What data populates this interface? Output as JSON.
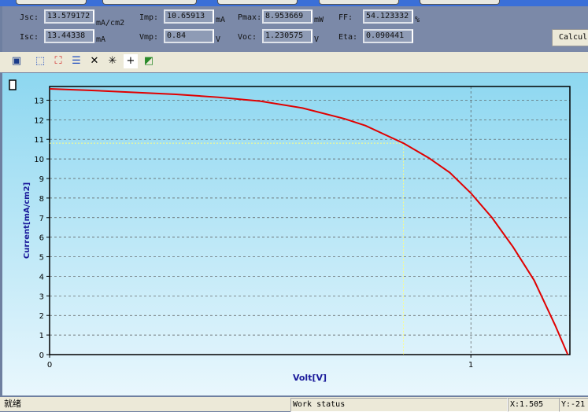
{
  "results": {
    "jsc": {
      "label": "Jsc:",
      "value": "13.579172",
      "unit": "mA/cm2"
    },
    "isc": {
      "label": "Isc:",
      "value": "13.44338",
      "unit": "mA"
    },
    "imp": {
      "label": "Imp:",
      "value": "10.65913",
      "unit": "mA"
    },
    "vmp": {
      "label": "Vmp:",
      "value": "0.84",
      "unit": "V"
    },
    "pmax": {
      "label": "Pmax:",
      "value": "8.953669",
      "unit": "mW"
    },
    "voc": {
      "label": "Voc:",
      "value": "1.230575",
      "unit": "V"
    },
    "ff": {
      "label": "FF:",
      "value": "54.123332",
      "unit": "%"
    },
    "eta": {
      "label": "Eta:",
      "value": "0.090441",
      "unit": ""
    }
  },
  "calc_button": "Calcul",
  "toolbar_icons": [
    "chart-properties-icon",
    "zoom-in-icon",
    "fit-icon",
    "list-icon",
    "tools-icon",
    "cursor-icon",
    "crosshair-icon",
    "export-icon"
  ],
  "status": {
    "ready": "就绪",
    "work": "Work status",
    "x": "X:1.505",
    "y": "Y:-21"
  },
  "chart_data": {
    "type": "line",
    "xlabel": "Volt[V]",
    "ylabel": "Current[mA/cm2]",
    "xlim": [
      0,
      1.235
    ],
    "ylim": [
      0,
      13.7
    ],
    "xticks": [
      {
        "v": 0,
        "label": "0"
      },
      {
        "v": 1,
        "label": "1"
      }
    ],
    "yticks": [
      0,
      1,
      2,
      3,
      4,
      5,
      6,
      7,
      8,
      9,
      10,
      11,
      12,
      13
    ],
    "grid": true,
    "curve_color": "#e00000",
    "mpp_line_color": "#ffff80",
    "mpp": {
      "v": 0.84,
      "i": 10.8
    },
    "series": [
      {
        "x": [
          0,
          0.1,
          0.2,
          0.3,
          0.4,
          0.5,
          0.6,
          0.7,
          0.75,
          0.8,
          0.84,
          0.9,
          0.95,
          1.0,
          1.05,
          1.1,
          1.15,
          1.2,
          1.23
        ],
        "y": [
          13.58,
          13.5,
          13.4,
          13.3,
          13.15,
          12.95,
          12.6,
          12.05,
          11.7,
          11.2,
          10.8,
          10.05,
          9.3,
          8.25,
          7.0,
          5.5,
          3.8,
          1.5,
          0
        ]
      }
    ]
  }
}
